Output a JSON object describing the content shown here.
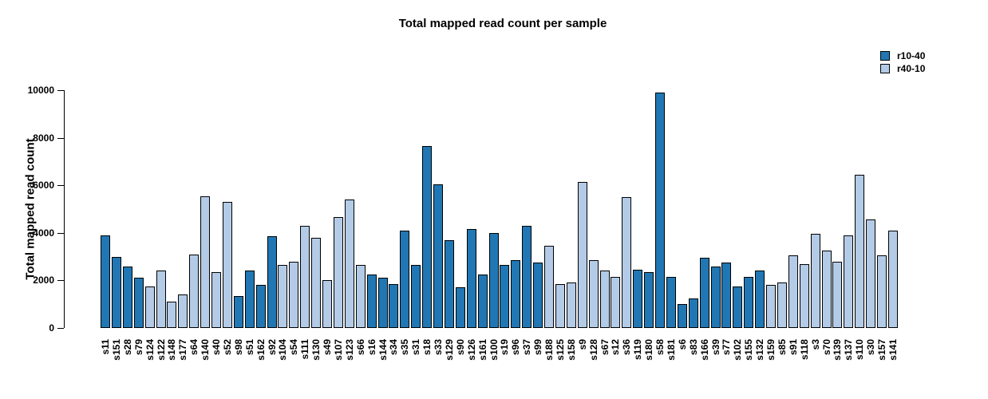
{
  "title": "Total mapped read count per sample",
  "chart_data": {
    "type": "bar",
    "title": "Total mapped read count per sample",
    "xlabel": "",
    "ylabel": "Total mapped read count",
    "ylim": [
      0,
      10000
    ],
    "yticks": [
      0,
      2000,
      4000,
      6000,
      8000,
      10000
    ],
    "grid": false,
    "legend_position": "top-right",
    "legend": [
      "r10-40",
      "r40-10"
    ],
    "series_colors": {
      "r10-40": "#2077b4",
      "r40-10": "#b3cbe6"
    },
    "categories": [
      "s11",
      "s151",
      "s28",
      "s79",
      "s124",
      "s122",
      "s148",
      "s177",
      "s64",
      "s140",
      "s40",
      "s52",
      "s98",
      "s51",
      "s162",
      "s92",
      "s104",
      "s54",
      "s111",
      "s130",
      "s49",
      "s107",
      "s123",
      "s66",
      "s16",
      "s144",
      "s34",
      "s35",
      "s31",
      "s18",
      "s33",
      "s129",
      "s90",
      "s126",
      "s161",
      "s100",
      "s19",
      "s96",
      "s37",
      "s99",
      "s188",
      "s125",
      "s158",
      "s9",
      "s128",
      "s67",
      "s12",
      "s36",
      "s119",
      "s180",
      "s58",
      "s181",
      "s6",
      "s83",
      "s166",
      "s39",
      "s77",
      "s102",
      "s155",
      "s132",
      "s159",
      "s85",
      "s91",
      "s118",
      "s3",
      "s70",
      "s139",
      "s137",
      "s110",
      "s30",
      "s157",
      "s141"
    ],
    "values": [
      3900,
      3000,
      2600,
      2100,
      1750,
      2400,
      1100,
      1400,
      3100,
      5550,
      2350,
      5300,
      1350,
      2400,
      1800,
      3850,
      2650,
      2800,
      4300,
      3800,
      2000,
      4650,
      5400,
      2650,
      2250,
      2100,
      1850,
      4100,
      2650,
      7650,
      6050,
      3700,
      1700,
      4150,
      2250,
      4000,
      2650,
      2850,
      4300,
      2750,
      3450,
      1850,
      1900,
      6150,
      2850,
      2400,
      2150,
      5500,
      2450,
      2350,
      9900,
      2150,
      1000,
      1250,
      2950,
      2600,
      2750,
      1750,
      2150,
      2400,
      1800,
      1900,
      3050,
      2700,
      3950,
      3250,
      2800,
      3900,
      6450,
      4550,
      3050,
      4100
    ],
    "groups": [
      "r10-40",
      "r10-40",
      "r10-40",
      "r10-40",
      "r40-10",
      "r40-10",
      "r40-10",
      "r40-10",
      "r40-10",
      "r40-10",
      "r40-10",
      "r40-10",
      "r10-40",
      "r10-40",
      "r10-40",
      "r10-40",
      "r40-10",
      "r40-10",
      "r40-10",
      "r40-10",
      "r40-10",
      "r40-10",
      "r40-10",
      "r40-10",
      "r10-40",
      "r10-40",
      "r10-40",
      "r10-40",
      "r10-40",
      "r10-40",
      "r10-40",
      "r10-40",
      "r10-40",
      "r10-40",
      "r10-40",
      "r10-40",
      "r10-40",
      "r10-40",
      "r10-40",
      "r10-40",
      "r40-10",
      "r40-10",
      "r40-10",
      "r40-10",
      "r40-10",
      "r40-10",
      "r40-10",
      "r40-10",
      "r10-40",
      "r10-40",
      "r10-40",
      "r10-40",
      "r10-40",
      "r10-40",
      "r10-40",
      "r10-40",
      "r10-40",
      "r10-40",
      "r10-40",
      "r10-40",
      "r40-10",
      "r40-10",
      "r40-10",
      "r40-10",
      "r40-10",
      "r40-10",
      "r40-10",
      "r40-10",
      "r40-10",
      "r40-10",
      "r40-10",
      "r40-10"
    ]
  }
}
